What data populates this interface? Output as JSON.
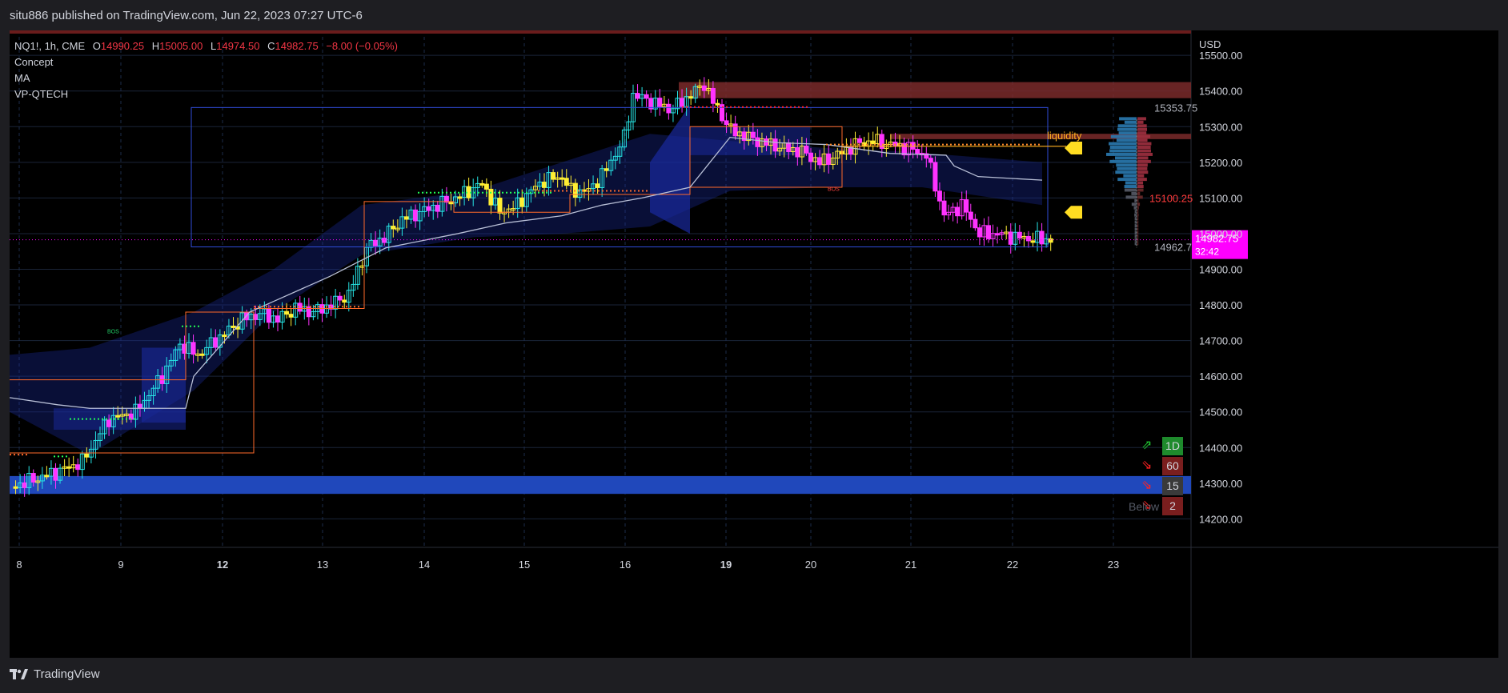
{
  "header": {
    "published": "situ886 published on TradingView.com, Jun 22, 2023 07:27 UTC-6"
  },
  "footer": {
    "brand": "TradingView"
  },
  "legend": {
    "symbol": "NQ1!, 1h, CME",
    "o_label": "O",
    "o": "14990.25",
    "h_label": "H",
    "h": "15005.00",
    "l_label": "L",
    "l": "14974.50",
    "c_label": "C",
    "c": "14982.75",
    "change": "−8.00 (−0.05%)",
    "indicators": [
      "Concept",
      "MA",
      "VP-QTECH"
    ]
  },
  "colors": {
    "background": "#000000",
    "grid": "#1a2438",
    "bull_candle": "#26e5e5",
    "neutral_candle": "#ffee33",
    "bear_candle": "#ff33ff",
    "value_area": "#1a2a9e",
    "poc_line": "#b8bfd6",
    "demand_zone": "#2048bb",
    "supply_zone": "#7a2a2a",
    "last_price": "#ff00ff",
    "liquidity": "#ffb020"
  },
  "chart_data": {
    "type": "candlestick",
    "currency": "USD",
    "ylim": [
      14120,
      15570
    ],
    "y_ticks": [
      14200,
      14300,
      14400,
      14500,
      14600,
      14700,
      14800,
      14900,
      15000,
      15100,
      15200,
      15300,
      15400,
      15500
    ],
    "x_ticks": [
      "8",
      "9",
      "12",
      "13",
      "14",
      "15",
      "16",
      "19",
      "20",
      "21",
      "22",
      "23"
    ],
    "bold_ticks": [
      "12",
      "19"
    ],
    "last_price": "14982.75",
    "countdown": "32:42",
    "price_labels": [
      {
        "value": 15353.75,
        "text": "15353.75",
        "color": "#b0b3bd"
      },
      {
        "value": 15100.25,
        "text": "15100.25",
        "color": "#ff3b3b"
      },
      {
        "value": 14962.75,
        "text": "14962.75",
        "color": "#b0b3bd"
      }
    ],
    "annotations": {
      "liquidity": "liquidity",
      "bos": [
        "BOS",
        "BOS"
      ]
    },
    "mtf_table": [
      {
        "tf": "1D",
        "arrow": "⇗",
        "color": "#1e8a2c",
        "arrow_color": "#22cc33"
      },
      {
        "tf": "60",
        "arrow": "⇘",
        "color": "#7a1e1e",
        "arrow_color": "#ff2222"
      },
      {
        "tf": "15",
        "arrow": "⇘",
        "color": "#3a3a3a",
        "arrow_color": "#ff2222"
      },
      {
        "tf": "2",
        "arrow": "⇘",
        "color": "#7a1e1e",
        "arrow_color": "#ff2222"
      }
    ],
    "below_text": "Below",
    "close_path": [
      [
        0,
        14290
      ],
      [
        5,
        14330
      ],
      [
        8,
        14360
      ],
      [
        11,
        14480
      ],
      [
        14,
        14500
      ],
      [
        17,
        14600
      ],
      [
        19,
        14690
      ],
      [
        21,
        14660
      ],
      [
        24,
        14720
      ],
      [
        26,
        14760
      ],
      [
        28,
        14775
      ],
      [
        30,
        14760
      ],
      [
        32,
        14790
      ],
      [
        34,
        14780
      ],
      [
        36,
        14800
      ],
      [
        38,
        14830
      ],
      [
        40,
        14960
      ],
      [
        42,
        14990
      ],
      [
        44,
        15040
      ],
      [
        46,
        15060
      ],
      [
        48,
        15080
      ],
      [
        50,
        15100
      ],
      [
        53,
        15140
      ],
      [
        55,
        15060
      ],
      [
        57,
        15080
      ],
      [
        58,
        15110
      ],
      [
        60,
        15150
      ],
      [
        62,
        15160
      ],
      [
        63,
        15120
      ],
      [
        65,
        15120
      ],
      [
        67,
        15180
      ],
      [
        69,
        15270
      ],
      [
        70,
        15390
      ],
      [
        72,
        15370
      ],
      [
        74,
        15350
      ],
      [
        75,
        15360
      ],
      [
        76,
        15380
      ],
      [
        78,
        15420
      ],
      [
        79,
        15370
      ],
      [
        80,
        15330
      ],
      [
        81,
        15290
      ],
      [
        82,
        15280
      ],
      [
        84,
        15260
      ],
      [
        87,
        15240
      ],
      [
        89,
        15230
      ],
      [
        91,
        15200
      ],
      [
        93,
        15220
      ],
      [
        95,
        15250
      ],
      [
        97,
        15260
      ],
      [
        99,
        15250
      ],
      [
        101,
        15240
      ],
      [
        103,
        15220
      ],
      [
        105,
        15050
      ],
      [
        107,
        15080
      ],
      [
        109,
        15000
      ],
      [
        111,
        15000
      ],
      [
        113,
        14990
      ],
      [
        115,
        14985
      ],
      [
        117,
        14982.75
      ]
    ]
  }
}
